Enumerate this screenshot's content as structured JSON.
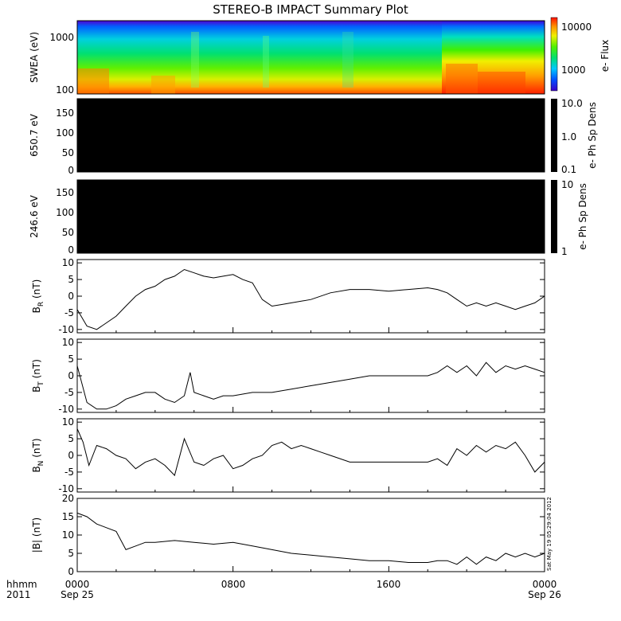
{
  "title": "STEREO-B IMPACT Summary Plot",
  "side_stamp": "Sat May 19 05:29:04 2012",
  "x_axis": {
    "tick_labels": [
      "0000",
      "0800",
      "1600",
      "0000"
    ],
    "date_labels": [
      "Sep 25",
      "Sep 26"
    ],
    "row_label_left_1": "hhmm",
    "row_label_left_2": "2011"
  },
  "colors": {
    "background": "#ffffff",
    "axes": "#000000",
    "blank_panel": "#000000"
  },
  "chart_data": [
    {
      "type": "heatmap",
      "id": "swea",
      "ylabel": "SWEA (eV)",
      "ytick_labels": [
        "100",
        "1000"
      ],
      "y_scale": "log",
      "ylim": [
        90,
        2000
      ],
      "colorbar": {
        "label": "e- Flux",
        "tick_labels": [
          "1000",
          "10000"
        ],
        "scale": "log",
        "colormap": "rainbow (blue-green-yellow-red)"
      }
    },
    {
      "type": "heatmap",
      "id": "pad650",
      "ylabel": "650.7 eV",
      "ytick_labels": [
        "0",
        "50",
        "100",
        "150"
      ],
      "ylim": [
        0,
        180
      ],
      "fill": "black",
      "colorbar": {
        "label": "e- Ph Sp Dens",
        "tick_labels": [
          "10.0",
          "1.0",
          "0.1"
        ],
        "scale": "log"
      }
    },
    {
      "type": "heatmap",
      "id": "pad246",
      "ylabel": "246.6 eV",
      "ytick_labels": [
        "0",
        "50",
        "100",
        "150"
      ],
      "ylim": [
        0,
        180
      ],
      "fill": "black",
      "colorbar": {
        "label": "e- Ph Sp Dens",
        "tick_labels": [
          "10",
          "1"
        ],
        "scale": "log"
      }
    },
    {
      "type": "line",
      "id": "br",
      "ylabel": "B",
      "ylabel_sub": "R",
      "ylabel_unit": "(nT)",
      "ytick_labels": [
        "-10",
        "-5",
        "0",
        "5",
        "10"
      ],
      "ylim": [
        -11,
        11
      ],
      "x_hours": [
        0,
        0.5,
        1,
        1.5,
        2,
        2.5,
        3,
        3.5,
        4,
        4.5,
        5,
        5.5,
        6,
        6.5,
        7,
        7.5,
        8,
        8.5,
        9,
        9.5,
        10,
        10.5,
        11,
        12,
        13,
        14,
        15,
        16,
        17,
        18,
        18.5,
        19,
        19.5,
        20,
        20.5,
        21,
        21.5,
        22,
        22.5,
        23,
        23.5,
        24
      ],
      "y": [
        -4,
        -9,
        -10,
        -8,
        -6,
        -3,
        0,
        2,
        3,
        5,
        6,
        8,
        7,
        6,
        5.5,
        6,
        6.5,
        5,
        4,
        -1,
        -3,
        -2.5,
        -2,
        -1,
        1,
        2,
        2,
        1.5,
        2,
        2.5,
        2,
        1,
        -1,
        -3,
        -2,
        -3,
        -2,
        -3,
        -4,
        -3,
        -2,
        0
      ]
    },
    {
      "type": "line",
      "id": "bt",
      "ylabel": "B",
      "ylabel_sub": "T",
      "ylabel_unit": "(nT)",
      "ytick_labels": [
        "-10",
        "-5",
        "0",
        "5",
        "10"
      ],
      "ylim": [
        -11,
        11
      ],
      "x_hours": [
        0,
        0.5,
        1,
        1.5,
        2,
        2.5,
        3,
        3.5,
        4,
        4.5,
        5,
        5.5,
        5.8,
        6,
        6.5,
        7,
        7.5,
        8,
        9,
        10,
        11,
        12,
        13,
        14,
        15,
        16,
        17,
        18,
        18.5,
        19,
        19.5,
        20,
        20.5,
        21,
        21.5,
        22,
        22.5,
        23,
        23.5,
        24
      ],
      "y": [
        3,
        -8,
        -10,
        -10,
        -9,
        -7,
        -6,
        -5,
        -5,
        -7,
        -8,
        -6,
        1,
        -5,
        -6,
        -7,
        -6,
        -6,
        -5,
        -5,
        -4,
        -3,
        -2,
        -1,
        0,
        0,
        0,
        0,
        1,
        3,
        1,
        3,
        0,
        4,
        1,
        3,
        2,
        3,
        2,
        1
      ]
    },
    {
      "type": "line",
      "id": "bn",
      "ylabel": "B",
      "ylabel_sub": "N",
      "ylabel_unit": "(nT)",
      "ytick_labels": [
        "-10",
        "-5",
        "0",
        "5",
        "10"
      ],
      "ylim": [
        -11,
        11
      ],
      "x_hours": [
        0,
        0.3,
        0.6,
        1,
        1.5,
        2,
        2.5,
        3,
        3.5,
        4,
        4.5,
        5,
        5.5,
        6,
        6.5,
        7,
        7.5,
        8,
        8.5,
        9,
        9.5,
        10,
        10.5,
        11,
        11.5,
        12,
        12.5,
        13,
        14,
        15,
        16,
        17,
        18,
        18.5,
        19,
        19.5,
        20,
        20.5,
        21,
        21.5,
        22,
        22.5,
        23,
        23.5,
        24
      ],
      "y": [
        8,
        4,
        -3,
        3,
        2,
        0,
        -1,
        -4,
        -2,
        -1,
        -3,
        -6,
        5,
        -2,
        -3,
        -1,
        0,
        -4,
        -3,
        -1,
        0,
        3,
        4,
        2,
        3,
        2,
        1,
        0,
        -2,
        -2,
        -2,
        -2,
        -2,
        -1,
        -3,
        2,
        0,
        3,
        1,
        3,
        2,
        4,
        0,
        -5,
        -2
      ]
    },
    {
      "type": "line",
      "id": "bmag",
      "ylabel": "|B| (nT)",
      "ytick_labels": [
        "0",
        "5",
        "10",
        "15",
        "20"
      ],
      "ylim": [
        0,
        20
      ],
      "x_hours": [
        0,
        0.5,
        1,
        1.5,
        2,
        2.5,
        3,
        3.5,
        4,
        5,
        6,
        7,
        8,
        9,
        10,
        11,
        12,
        13,
        14,
        15,
        16,
        17,
        18,
        18.5,
        19,
        19.5,
        20,
        20.5,
        21,
        21.5,
        22,
        22.5,
        23,
        23.5,
        24
      ],
      "y": [
        16,
        15,
        13,
        12,
        11,
        6,
        7,
        8,
        8,
        8.5,
        8,
        7.5,
        8,
        7,
        6,
        5,
        4.5,
        4,
        3.5,
        3,
        3,
        2.5,
        2.5,
        3,
        3,
        2,
        4,
        2,
        4,
        3,
        5,
        4,
        5,
        4,
        5
      ]
    }
  ]
}
